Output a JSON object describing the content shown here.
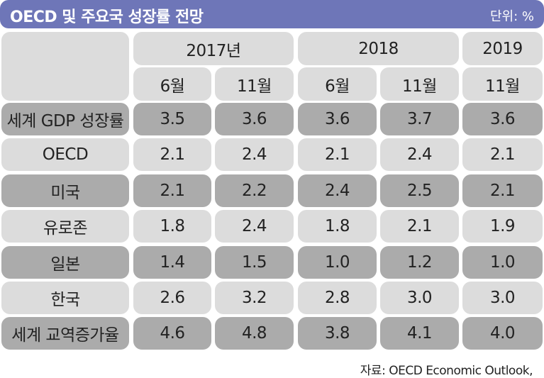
{
  "header": {
    "title": "OECD 및 주요국 성장률 전망",
    "unit": "단위: %"
  },
  "table": {
    "years": [
      "2017년",
      "2018",
      "2019"
    ],
    "months": [
      "6월",
      "11월",
      "6월",
      "11월",
      "11월"
    ],
    "rows": [
      [
        "세계 GDP 성장률",
        "3.5",
        "3.6",
        "3.6",
        "3.7",
        "3.6"
      ],
      [
        "OECD",
        "2.1",
        "2.4",
        "2.1",
        "2.4",
        "2.1"
      ],
      [
        "미국",
        "2.1",
        "2.2",
        "2.4",
        "2.5",
        "2.1"
      ],
      [
        "유로존",
        "1.8",
        "2.4",
        "1.8",
        "2.1",
        "1.9"
      ],
      [
        "일본",
        "1.4",
        "1.5",
        "1.0",
        "1.2",
        "1.0"
      ],
      [
        "한국",
        "2.6",
        "3.2",
        "2.8",
        "3.0",
        "3.0"
      ],
      [
        "세계 교역증가율",
        "4.6",
        "4.8",
        "3.8",
        "4.1",
        "4.0"
      ]
    ]
  },
  "source": "자료: OECD Economic Outlook,"
}
